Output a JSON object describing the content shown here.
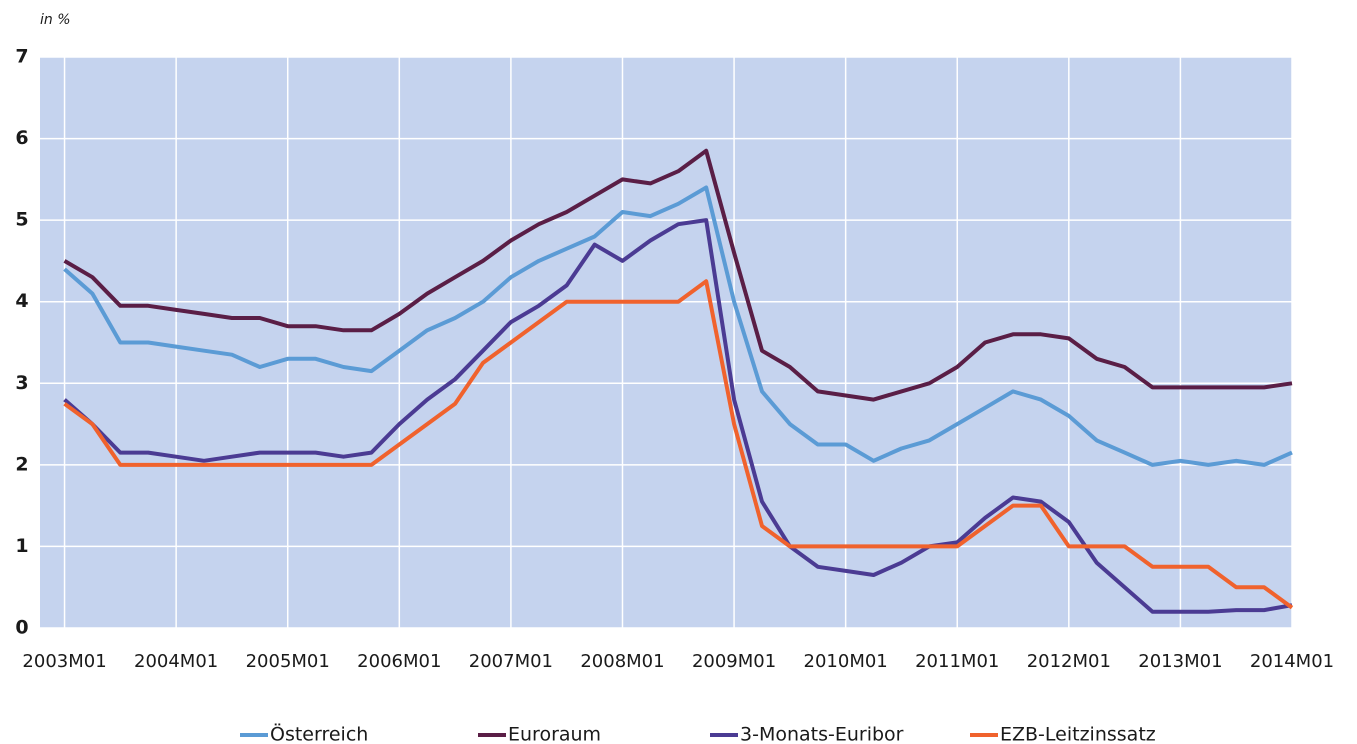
{
  "chart_data": {
    "type": "line",
    "y_axis_label": "in %",
    "x": [
      2003,
      2003.25,
      2003.5,
      2003.75,
      2004,
      2004.25,
      2004.5,
      2004.75,
      2005,
      2005.25,
      2005.5,
      2005.75,
      2006,
      2006.25,
      2006.5,
      2006.75,
      2007,
      2007.25,
      2007.5,
      2007.75,
      2008,
      2008.25,
      2008.5,
      2008.75,
      2009,
      2009.25,
      2009.5,
      2009.75,
      2010,
      2010.25,
      2010.5,
      2010.75,
      2011,
      2011.25,
      2011.5,
      2011.75,
      2012,
      2012.25,
      2012.5,
      2012.75,
      2013,
      2013.25,
      2013.5,
      2013.75,
      2014
    ],
    "series": [
      {
        "name": "Österreich",
        "color": "#5b9bd5",
        "values": [
          4.4,
          4.1,
          3.5,
          3.5,
          3.45,
          3.4,
          3.35,
          3.2,
          3.3,
          3.3,
          3.2,
          3.15,
          3.4,
          3.65,
          3.8,
          4.0,
          4.3,
          4.5,
          4.65,
          4.8,
          5.1,
          5.05,
          5.2,
          5.4,
          4.0,
          2.9,
          2.5,
          2.25,
          2.25,
          2.05,
          2.2,
          2.3,
          2.5,
          2.7,
          2.9,
          2.8,
          2.6,
          2.3,
          2.15,
          2.0,
          2.05,
          2.0,
          2.05,
          2.0,
          2.15
        ]
      },
      {
        "name": "Euroraum",
        "color": "#5a1e46",
        "values": [
          4.5,
          4.3,
          3.95,
          3.95,
          3.9,
          3.85,
          3.8,
          3.8,
          3.7,
          3.7,
          3.65,
          3.65,
          3.85,
          4.1,
          4.3,
          4.5,
          4.75,
          4.95,
          5.1,
          5.3,
          5.5,
          5.45,
          5.6,
          5.85,
          4.6,
          3.4,
          3.2,
          2.9,
          2.85,
          2.8,
          2.9,
          3.0,
          3.2,
          3.5,
          3.6,
          3.6,
          3.55,
          3.3,
          3.2,
          2.95,
          2.95,
          2.95,
          2.95,
          2.95,
          3.0
        ]
      },
      {
        "name": "3-Monats-Euribor",
        "color": "#4b3b93",
        "values": [
          2.8,
          2.5,
          2.15,
          2.15,
          2.1,
          2.05,
          2.1,
          2.15,
          2.15,
          2.15,
          2.1,
          2.15,
          2.5,
          2.8,
          3.05,
          3.4,
          3.75,
          3.95,
          4.2,
          4.7,
          4.5,
          4.75,
          4.95,
          5.0,
          2.8,
          1.55,
          1.0,
          0.75,
          0.7,
          0.65,
          0.8,
          1.0,
          1.05,
          1.35,
          1.6,
          1.55,
          1.3,
          0.8,
          0.5,
          0.2,
          0.2,
          0.2,
          0.22,
          0.22,
          0.28
        ]
      },
      {
        "name": "EZB-Leitzinssatz",
        "color": "#f0622d",
        "values": [
          2.75,
          2.5,
          2.0,
          2.0,
          2.0,
          2.0,
          2.0,
          2.0,
          2.0,
          2.0,
          2.0,
          2.0,
          2.25,
          2.5,
          2.75,
          3.25,
          3.5,
          3.75,
          4.0,
          4.0,
          4.0,
          4.0,
          4.0,
          4.25,
          2.5,
          1.25,
          1.0,
          1.0,
          1.0,
          1.0,
          1.0,
          1.0,
          1.0,
          1.25,
          1.5,
          1.5,
          1.0,
          1.0,
          1.0,
          0.75,
          0.75,
          0.75,
          0.5,
          0.5,
          0.25
        ]
      }
    ],
    "xlim": [
      2002.78,
      2014.0
    ],
    "xticks": [
      {
        "value": 2003,
        "label": "2003M01"
      },
      {
        "value": 2004,
        "label": "2004M01"
      },
      {
        "value": 2005,
        "label": "2005M01"
      },
      {
        "value": 2006,
        "label": "2006M01"
      },
      {
        "value": 2007,
        "label": "2007M01"
      },
      {
        "value": 2008,
        "label": "2008M01"
      },
      {
        "value": 2009,
        "label": "2009M01"
      },
      {
        "value": 2010,
        "label": "2010M01"
      },
      {
        "value": 2011,
        "label": "2011M01"
      },
      {
        "value": 2012,
        "label": "2012M01"
      },
      {
        "value": 2013,
        "label": "2013M01"
      },
      {
        "value": 2014,
        "label": "2014M01"
      }
    ],
    "ylim": [
      0,
      7
    ],
    "yticks": [
      0,
      1,
      2,
      3,
      4,
      5,
      6,
      7
    ],
    "grid": true,
    "legend": "bottom"
  }
}
